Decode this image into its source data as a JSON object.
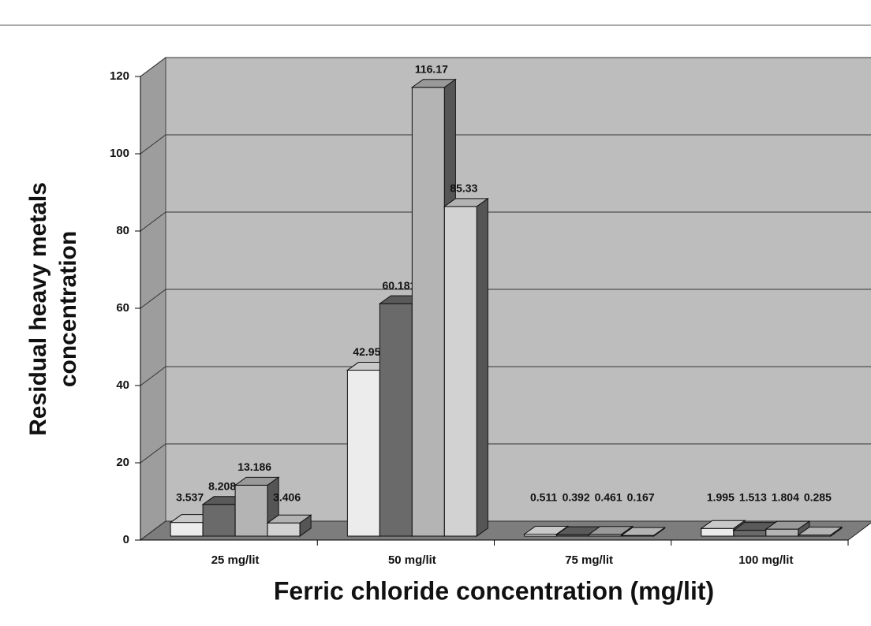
{
  "chart_data": {
    "type": "bar3d",
    "xlabel": "Ferric chloride concentration  (mg/lit)",
    "ylabel": [
      "Residual heavy metals",
      "concentration"
    ],
    "categories": [
      "25 mg/lit",
      "50 mg/lit",
      "75 mg/lit",
      "100 mg/lit"
    ],
    "series": [
      {
        "color": "#ececec",
        "values": [
          3.537,
          42.95,
          0.511,
          1.995
        ]
      },
      {
        "color": "#6a6a6a",
        "values": [
          8.208,
          60.181,
          0.392,
          1.513
        ]
      },
      {
        "color": "#b4b4b4",
        "values": [
          13.186,
          116.17,
          0.461,
          1.804
        ]
      },
      {
        "color": "#d2d2d2",
        "values": [
          3.406,
          85.33,
          0.167,
          0.285
        ]
      }
    ],
    "ylim": [
      0,
      120
    ],
    "yticks": [
      0,
      20,
      40,
      60,
      80,
      100,
      120
    ],
    "grid": true
  }
}
